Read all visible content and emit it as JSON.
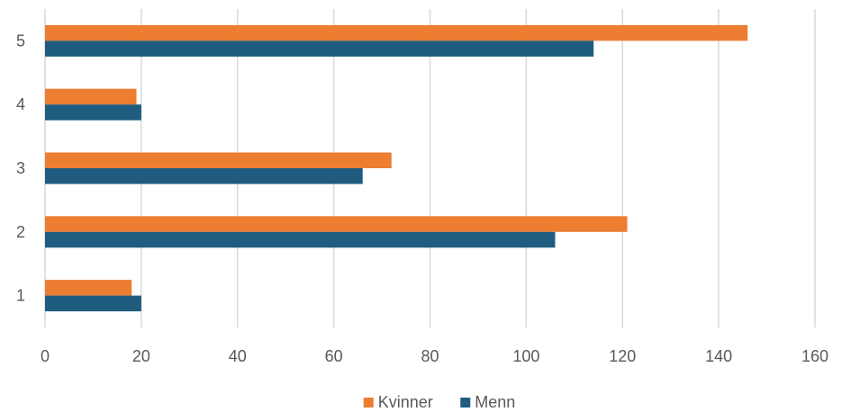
{
  "chart_data": {
    "type": "bar",
    "orientation": "horizontal",
    "categories": [
      "1",
      "2",
      "3",
      "4",
      "5"
    ],
    "series": [
      {
        "name": "Kvinner",
        "color": "#ED7D31",
        "values": [
          18,
          121,
          72,
          19,
          146
        ]
      },
      {
        "name": "Menn",
        "color": "#1F5C7F",
        "values": [
          20,
          106,
          66,
          20,
          114
        ]
      }
    ],
    "xlim": [
      0,
      160
    ],
    "xticks": [
      "0",
      "20",
      "40",
      "60",
      "80",
      "100",
      "120",
      "140",
      "160"
    ],
    "grid": "vertical",
    "legend": "bottom-center"
  }
}
